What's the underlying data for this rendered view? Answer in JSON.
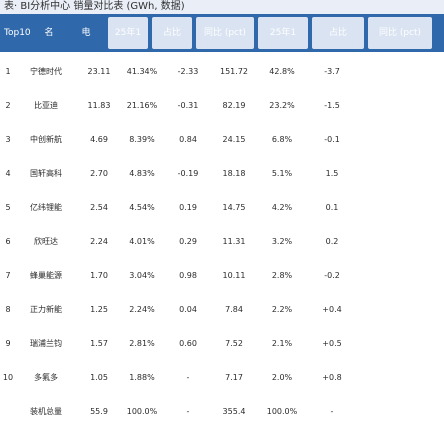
{
  "title_bar": "表· BI分析中心 销量对比表 (GWh, 数据)",
  "header": {
    "col1": "Top10",
    "col2": "名",
    "col3": "电",
    "col4": "25年1",
    "col5": "占比",
    "col6": "同比 (pct)",
    "col7": "25年1",
    "col8": "占比",
    "col9": "同比 (pct)"
  },
  "rows": [
    {
      "rank": "1",
      "name": "宁德时代",
      "sales": "23.11",
      "share": "41.34%",
      "pct": "-2.33",
      "prev": "151.72",
      "prev_share": "42.8%",
      "prev_pct": "-3.7"
    },
    {
      "rank": "2",
      "name": "比亚迪",
      "sales": "11.83",
      "share": "21.16%",
      "pct": "-0.31",
      "prev": "82.19",
      "prev_share": "23.2%",
      "prev_pct": "-1.5"
    },
    {
      "rank": "3",
      "name": "中创新航",
      "sales": "4.69",
      "share": "8.39%",
      "pct": "0.84",
      "prev": "24.15",
      "prev_share": "6.8%",
      "prev_pct": "-0.1"
    },
    {
      "rank": "4",
      "name": "国轩高科",
      "sales": "2.70",
      "share": "4.83%",
      "pct": "-0.19",
      "prev": "18.18",
      "prev_share": "5.1%",
      "prev_pct": "1.5"
    },
    {
      "rank": "5",
      "name": "亿纬锂能",
      "sales": "2.54",
      "share": "4.54%",
      "pct": "0.19",
      "prev": "14.75",
      "prev_share": "4.2%",
      "prev_pct": "0.1"
    },
    {
      "rank": "6",
      "name": "欣旺达",
      "sales": "2.24",
      "share": "4.01%",
      "pct": "0.29",
      "prev": "11.31",
      "prev_share": "3.2%",
      "prev_pct": "0.2"
    },
    {
      "rank": "7",
      "name": "蜂巢能源",
      "sales": "1.70",
      "share": "3.04%",
      "pct": "0.98",
      "prev": "10.11",
      "prev_share": "2.8%",
      "prev_pct": "-0.2"
    },
    {
      "rank": "8",
      "name": "正力新能",
      "sales": "1.25",
      "share": "2.24%",
      "pct": "0.04",
      "prev": "7.84",
      "prev_share": "2.2%",
      "prev_pct": "+0.4"
    },
    {
      "rank": "9",
      "name": "瑞浦兰钧",
      "sales": "1.57",
      "share": "2.81%",
      "pct": "0.60",
      "prev": "7.52",
      "prev_share": "2.1%",
      "prev_pct": "+0.5"
    },
    {
      "rank": "10",
      "name": "多氟多",
      "sales": "1.05",
      "share": "1.88%",
      "pct": "-",
      "prev": "7.17",
      "prev_share": "2.0%",
      "prev_pct": "+0.8"
    },
    {
      "rank": "",
      "name": "装机总量",
      "sales": "55.9",
      "share": "100.0%",
      "pct": "-",
      "prev": "355.4",
      "prev_share": "100.0%",
      "prev_pct": "-"
    }
  ]
}
